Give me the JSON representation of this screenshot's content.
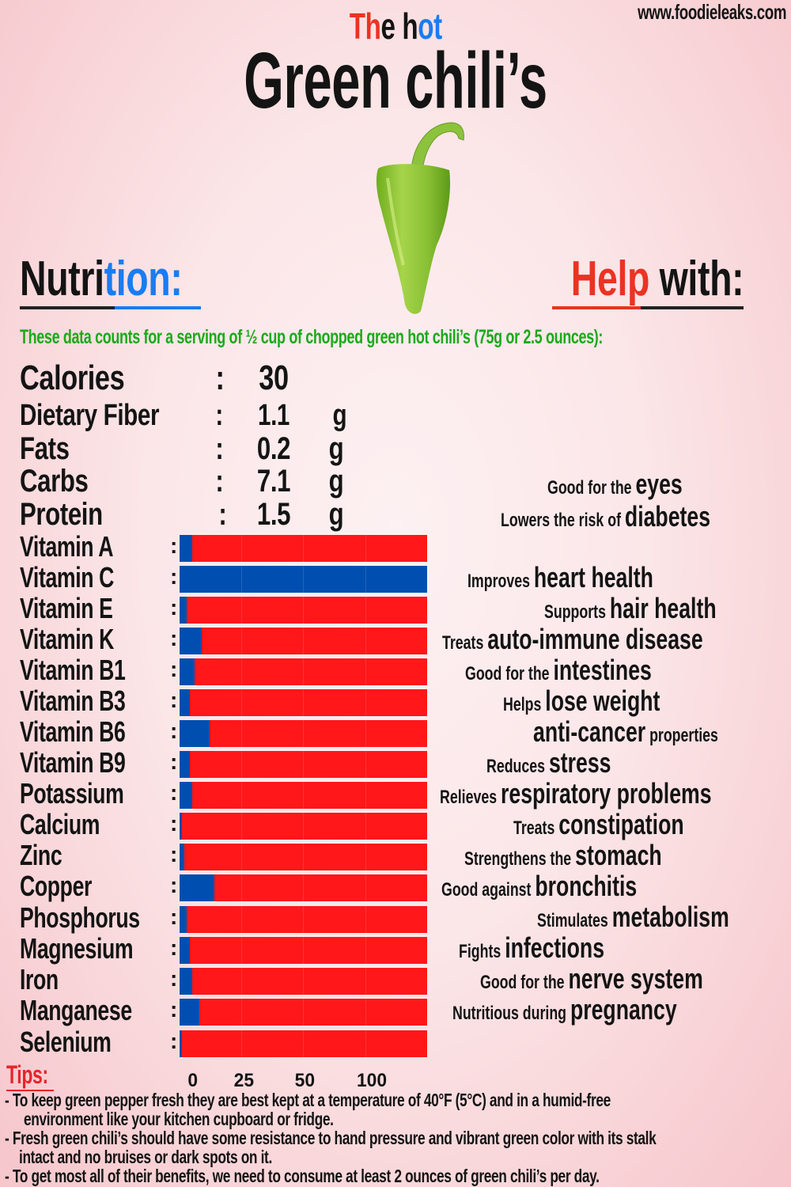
{
  "header": {
    "website": "www.foodieleaks.com",
    "subtitle_parts": [
      {
        "text": "Th",
        "color": "#ea3323"
      },
      {
        "text": "e h",
        "color": "#111111"
      },
      {
        "text": "ot",
        "color": "#1a7cf2"
      }
    ],
    "title": "Green chili’s"
  },
  "image": {
    "subject": "green-chili-pepper-icon"
  },
  "nutrition_header": {
    "part1": "Nutri",
    "part2": "tion:",
    "color1": "#141414",
    "color2": "#1a7cf2"
  },
  "help_header": {
    "part1": "Help",
    "part2": " with:",
    "color1": "#ea3323",
    "color2": "#141414"
  },
  "serving_note": "These data counts for a serving of ½ cup of chopped green hot chili’s (75g or 2.5 ounces):",
  "macros": [
    {
      "label": "Calories",
      "colon": ":",
      "value": "30",
      "unit": ""
    },
    {
      "label": "Dietary Fiber",
      "colon": ":",
      "value": "1.1",
      "unit": "g"
    },
    {
      "label": "Fats",
      "colon": ":",
      "value": "0.2",
      "unit": "g"
    },
    {
      "label": "Carbs",
      "colon": ":",
      "value": "7.1",
      "unit": "g"
    },
    {
      "label": "Protein",
      "colon": ":",
      "value": "1.5",
      "unit": "g"
    }
  ],
  "colors": {
    "bar_fill": "#004fb0",
    "bar_remainder": "#ff1719",
    "accent_red": "#ea3323",
    "accent_blue": "#1a7cf2",
    "serving_green": "#1aaa1a"
  },
  "chart_data": {
    "type": "bar",
    "orientation": "horizontal",
    "title": "",
    "xlabel": "",
    "ylabel": "",
    "xlim": [
      0,
      100
    ],
    "x_tick_labels": [
      "0",
      "25",
      "50",
      "100"
    ],
    "grid": false,
    "legend": null,
    "note": "Values are % of daily value per serving, estimated from bar fill (blue) over a 100% track (red)",
    "categories": [
      "Vitamin A",
      "Vitamin C",
      "Vitamin E",
      "Vitamin K",
      "Vitamin B1",
      "Vitamin B3",
      "Vitamin B6",
      "Vitamin B9",
      "Potassium",
      "Calcium",
      "Zinc",
      "Copper",
      "Phosphorus",
      "Magnesium",
      "Iron",
      "Manganese",
      "Selenium"
    ],
    "values": [
      5,
      100,
      3,
      9,
      6,
      4,
      12,
      4,
      5,
      1,
      2,
      14,
      3,
      4,
      5,
      8,
      1
    ]
  },
  "axis_ticks": [
    "0",
    "25",
    "50",
    "100"
  ],
  "benefits": [
    {
      "prefix": "Good for the ",
      "highlight": "eyes",
      "suffix": ""
    },
    {
      "prefix": "Lowers the risk of ",
      "highlight": "diabetes",
      "suffix": ""
    },
    {
      "prefix": "Improves ",
      "highlight": "heart health",
      "suffix": ""
    },
    {
      "prefix": "Supports ",
      "highlight": "hair health",
      "suffix": ""
    },
    {
      "prefix": "Treats ",
      "highlight": "auto-immune disease",
      "suffix": ""
    },
    {
      "prefix": "Good for the ",
      "highlight": "intestines",
      "suffix": ""
    },
    {
      "prefix": "Helps ",
      "highlight": "lose weight",
      "suffix": ""
    },
    {
      "prefix": "",
      "highlight": "anti-cancer",
      "suffix": " properties"
    },
    {
      "prefix": "Reduces ",
      "highlight": "stress",
      "suffix": ""
    },
    {
      "prefix": "Relieves ",
      "highlight": "respiratory problems",
      "suffix": ""
    },
    {
      "prefix": "Treats ",
      "highlight": "constipation",
      "suffix": ""
    },
    {
      "prefix": "Strengthens the ",
      "highlight": "stomach",
      "suffix": ""
    },
    {
      "prefix": "Good against ",
      "highlight": "bronchitis",
      "suffix": ""
    },
    {
      "prefix": "Stimulates ",
      "highlight": "metabolism",
      "suffix": ""
    },
    {
      "prefix": "Fights ",
      "highlight": "infections",
      "suffix": ""
    },
    {
      "prefix": "Good for the ",
      "highlight": "nerve system",
      "suffix": ""
    },
    {
      "prefix": "Nutritious during ",
      "highlight": "pregnancy",
      "suffix": ""
    }
  ],
  "tips": {
    "heading": "Tips:",
    "lines": [
      "- To keep green pepper fresh they are best kept at a temperature of 40°F (5°C) and in a humid-free",
      "environment like your kitchen cupboard or fridge.",
      "- Fresh green chili’s should have some resistance to hand pressure and vibrant green color with its stalk",
      "intact and no bruises or dark spots on it.",
      "- To get most all of their benefits, we need to consume at least 2 ounces of green chili’s per day."
    ]
  }
}
